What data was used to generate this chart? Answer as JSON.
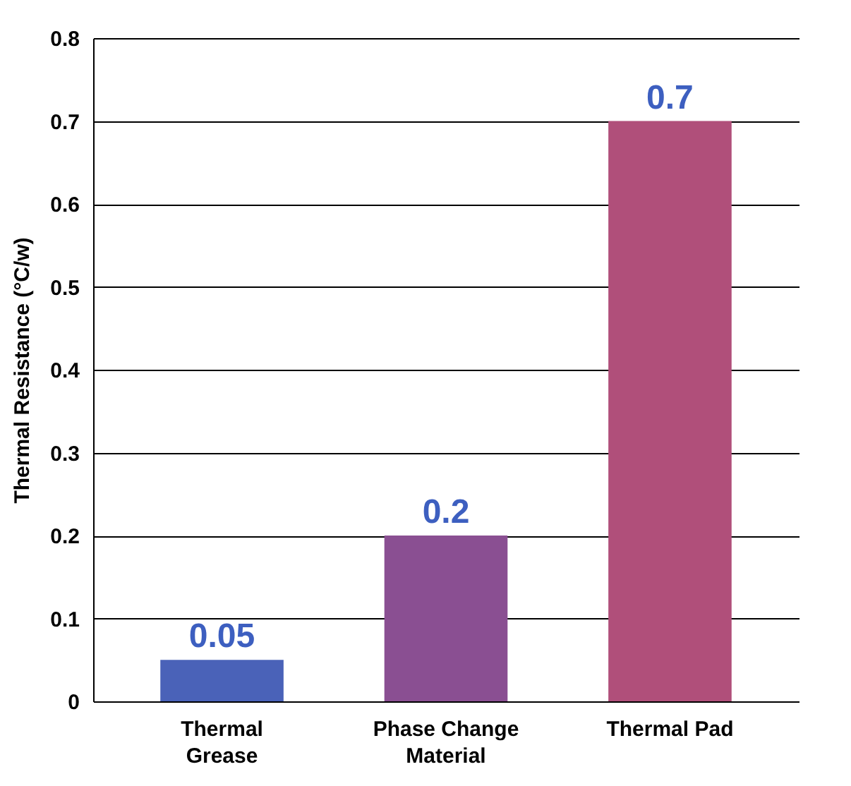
{
  "chart_data": {
    "type": "bar",
    "ylabel": "Thermal Resistance (°C/w)",
    "categories": [
      "Thermal Grease",
      "Phase Change Material",
      "Thermal Pad"
    ],
    "values": [
      0.05,
      0.2,
      0.7
    ],
    "colors": [
      "#4a62b8",
      "#8a4f92",
      "#b04f7a"
    ],
    "ylim": [
      0,
      0.8
    ],
    "yticks": [
      0,
      0.1,
      0.2,
      0.3,
      0.4,
      0.5,
      0.6,
      0.7,
      0.8
    ],
    "grid": "y",
    "data_labels": true
  }
}
